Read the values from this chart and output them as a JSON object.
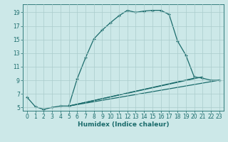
{
  "title": "",
  "xlabel": "Humidex (Indice chaleur)",
  "bg_color": "#cce8e8",
  "line_color": "#1a6b6b",
  "grid_color": "#b0d8d8",
  "xlim": [
    -0.5,
    23.5
  ],
  "ylim": [
    4.5,
    20.2
  ],
  "yticks": [
    5,
    7,
    9,
    11,
    13,
    15,
    17,
    19
  ],
  "xticks": [
    0,
    1,
    2,
    3,
    4,
    5,
    6,
    7,
    8,
    9,
    10,
    11,
    12,
    13,
    14,
    15,
    16,
    17,
    18,
    19,
    20,
    21,
    22,
    23
  ],
  "line1_x": [
    0,
    1,
    2,
    3,
    4,
    5,
    6,
    7,
    8,
    9,
    10,
    11,
    12,
    13,
    14,
    15,
    16,
    17,
    18,
    19,
    20,
    21,
    22,
    23
  ],
  "line1_y": [
    6.5,
    5.1,
    4.7,
    5.0,
    5.2,
    5.2,
    9.2,
    12.3,
    15.1,
    16.4,
    17.5,
    18.5,
    19.3,
    19.0,
    19.2,
    19.3,
    19.3,
    18.7,
    14.8,
    12.7,
    9.5,
    9.3,
    9.0,
    9.0
  ],
  "line2_x": [
    5,
    23
  ],
  "line2_y": [
    5.2,
    9.0
  ],
  "line3_x": [
    5,
    21
  ],
  "line3_y": [
    5.2,
    9.5
  ],
  "line4_x": [
    5,
    20
  ],
  "line4_y": [
    5.2,
    9.3
  ],
  "xlabel_fontsize": 6.5,
  "tick_fontsize": 5.5,
  "linewidth": 0.9
}
